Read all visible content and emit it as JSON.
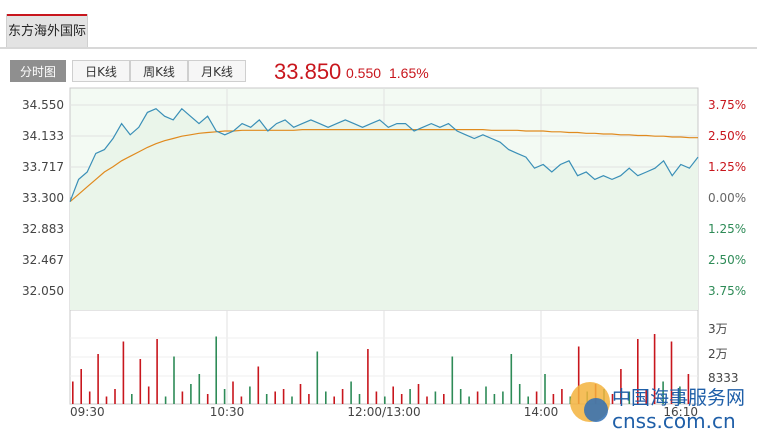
{
  "stock": {
    "name": "东方海外国际"
  },
  "tabs": [
    {
      "label": "分时图",
      "active": true
    },
    {
      "label": "日K线",
      "active": false
    },
    {
      "label": "周K线",
      "active": false
    },
    {
      "label": "月K线",
      "active": false
    }
  ],
  "quote": {
    "price": "33.850",
    "change": "0.550",
    "change_pct": "1.65%"
  },
  "colors": {
    "up": "#c8161d",
    "down": "#2e8b57",
    "price_line": "#3a8fb7",
    "avg_line": "#e08a1e",
    "accent_red": "#c8161d"
  },
  "watermark": {
    "text": "中国海事服务网",
    "domain": "cnss.com.cn"
  },
  "chart_data": {
    "type": "line",
    "y_axis_left": [
      "34.550",
      "34.133",
      "33.717",
      "33.300",
      "32.883",
      "32.467",
      "32.050"
    ],
    "y_axis_right": [
      "3.75%",
      "2.50%",
      "1.25%",
      "0.00%",
      "1.25%",
      "2.50%",
      "3.75%"
    ],
    "ylim": [
      32.05,
      34.55
    ],
    "prev_close": 33.3,
    "volume_axis": [
      "3万",
      "2万",
      "8333"
    ],
    "volume_max": 30000,
    "x_ticks": [
      "09:30",
      "10:30",
      "12:00/13:00",
      "14:00",
      "16:10"
    ],
    "series": [
      {
        "name": "price",
        "values": [
          33.25,
          33.55,
          33.65,
          33.9,
          33.95,
          34.1,
          34.3,
          34.15,
          34.25,
          34.45,
          34.5,
          34.4,
          34.35,
          34.5,
          34.4,
          34.3,
          34.4,
          34.2,
          34.15,
          34.2,
          34.3,
          34.25,
          34.35,
          34.2,
          34.3,
          34.35,
          34.25,
          34.3,
          34.35,
          34.3,
          34.25,
          34.3,
          34.35,
          34.3,
          34.25,
          34.3,
          34.35,
          34.25,
          34.3,
          34.3,
          34.2,
          34.25,
          34.3,
          34.25,
          34.3,
          34.2,
          34.15,
          34.1,
          34.15,
          34.1,
          34.05,
          33.95,
          33.9,
          33.85,
          33.7,
          33.75,
          33.65,
          33.75,
          33.8,
          33.6,
          33.65,
          33.55,
          33.6,
          33.55,
          33.6,
          33.7,
          33.6,
          33.65,
          33.7,
          33.8,
          33.6,
          33.75,
          33.7,
          33.85
        ]
      },
      {
        "name": "average",
        "values": [
          33.25,
          33.35,
          33.45,
          33.55,
          33.65,
          33.72,
          33.8,
          33.86,
          33.92,
          33.98,
          34.03,
          34.07,
          34.1,
          34.13,
          34.15,
          34.17,
          34.18,
          34.19,
          34.2,
          34.2,
          34.21,
          34.21,
          34.21,
          34.21,
          34.21,
          34.21,
          34.21,
          34.22,
          34.22,
          34.22,
          34.22,
          34.22,
          34.22,
          34.22,
          34.22,
          34.22,
          34.22,
          34.22,
          34.22,
          34.22,
          34.22,
          34.22,
          34.22,
          34.22,
          34.22,
          34.22,
          34.22,
          34.22,
          34.22,
          34.21,
          34.21,
          34.21,
          34.21,
          34.2,
          34.2,
          34.2,
          34.19,
          34.19,
          34.18,
          34.18,
          34.17,
          34.17,
          34.16,
          34.16,
          34.15,
          34.15,
          34.14,
          34.14,
          34.13,
          34.13,
          34.12,
          34.12,
          34.11,
          34.11
        ]
      }
    ],
    "volumes": [
      9000,
      14000,
      5000,
      20000,
      3000,
      6000,
      25000,
      4000,
      18000,
      7000,
      26000,
      3000,
      19000,
      5000,
      8000,
      12000,
      4000,
      27000,
      6000,
      9000,
      3000,
      7000,
      15000,
      4000,
      5000,
      6000,
      3000,
      8000,
      4000,
      21000,
      5000,
      3000,
      6000,
      9000,
      4000,
      22000,
      5000,
      3000,
      7000,
      4000,
      6000,
      8000,
      3000,
      5000,
      4000,
      19000,
      6000,
      3000,
      5000,
      7000,
      4000,
      5000,
      20000,
      8000,
      3000,
      5000,
      12000,
      4000,
      6000,
      3000,
      23000,
      5000,
      8000,
      6000,
      4000,
      14000,
      5000,
      26000,
      6000,
      28000,
      9000,
      25000,
      7000,
      12000
    ]
  }
}
